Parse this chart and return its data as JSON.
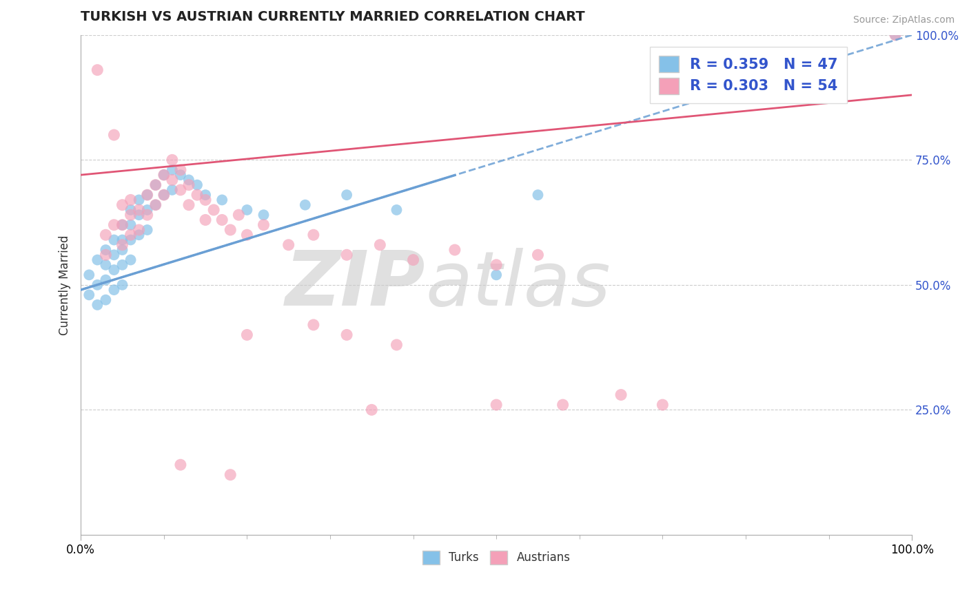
{
  "title": "TURKISH VS AUSTRIAN CURRENTLY MARRIED CORRELATION CHART",
  "source": "Source: ZipAtlas.com",
  "ylabel": "Currently Married",
  "xmin": 0.0,
  "xmax": 1.0,
  "ymin": 0.0,
  "ymax": 1.0,
  "yticks": [
    0.25,
    0.5,
    0.75,
    1.0
  ],
  "ytick_labels": [
    "25.0%",
    "50.0%",
    "75.0%",
    "100.0%"
  ],
  "turks_R": 0.359,
  "turks_N": 47,
  "austrians_R": 0.303,
  "austrians_N": 54,
  "turks_color": "#85C1E8",
  "austrians_color": "#F4A0B8",
  "trend_turks_color": "#6A9FD4",
  "trend_austrians_color": "#E05575",
  "watermark_color": "#E0E0E0",
  "legend_R_color": "#3355CC",
  "turks_x": [
    0.01,
    0.01,
    0.02,
    0.02,
    0.02,
    0.03,
    0.03,
    0.03,
    0.03,
    0.04,
    0.04,
    0.04,
    0.04,
    0.05,
    0.05,
    0.05,
    0.05,
    0.05,
    0.06,
    0.06,
    0.06,
    0.06,
    0.07,
    0.07,
    0.07,
    0.08,
    0.08,
    0.08,
    0.09,
    0.09,
    0.1,
    0.1,
    0.11,
    0.11,
    0.12,
    0.13,
    0.14,
    0.15,
    0.17,
    0.2,
    0.22,
    0.27,
    0.32,
    0.38,
    0.5,
    0.55,
    0.98
  ],
  "turks_y": [
    0.52,
    0.48,
    0.55,
    0.5,
    0.46,
    0.57,
    0.54,
    0.51,
    0.47,
    0.59,
    0.56,
    0.53,
    0.49,
    0.62,
    0.59,
    0.57,
    0.54,
    0.5,
    0.65,
    0.62,
    0.59,
    0.55,
    0.67,
    0.64,
    0.6,
    0.68,
    0.65,
    0.61,
    0.7,
    0.66,
    0.72,
    0.68,
    0.73,
    0.69,
    0.72,
    0.71,
    0.7,
    0.68,
    0.67,
    0.65,
    0.64,
    0.66,
    0.68,
    0.65,
    0.52,
    0.68,
    1.0
  ],
  "austrians_x": [
    0.02,
    0.03,
    0.03,
    0.04,
    0.04,
    0.05,
    0.05,
    0.05,
    0.06,
    0.06,
    0.06,
    0.07,
    0.07,
    0.08,
    0.08,
    0.09,
    0.09,
    0.1,
    0.1,
    0.11,
    0.11,
    0.12,
    0.12,
    0.13,
    0.13,
    0.14,
    0.15,
    0.15,
    0.16,
    0.17,
    0.18,
    0.19,
    0.2,
    0.22,
    0.25,
    0.28,
    0.32,
    0.36,
    0.4,
    0.45,
    0.5,
    0.55,
    0.2,
    0.28,
    0.32,
    0.38,
    0.5,
    0.58,
    0.65,
    0.7,
    0.12,
    0.18,
    0.35,
    0.98
  ],
  "austrians_y": [
    0.93,
    0.6,
    0.56,
    0.8,
    0.62,
    0.66,
    0.58,
    0.62,
    0.64,
    0.6,
    0.67,
    0.65,
    0.61,
    0.68,
    0.64,
    0.7,
    0.66,
    0.72,
    0.68,
    0.75,
    0.71,
    0.73,
    0.69,
    0.7,
    0.66,
    0.68,
    0.67,
    0.63,
    0.65,
    0.63,
    0.61,
    0.64,
    0.6,
    0.62,
    0.58,
    0.6,
    0.56,
    0.58,
    0.55,
    0.57,
    0.54,
    0.56,
    0.4,
    0.42,
    0.4,
    0.38,
    0.26,
    0.26,
    0.28,
    0.26,
    0.14,
    0.12,
    0.25,
    1.0
  ],
  "turks_line_x0": 0.0,
  "turks_line_y0": 0.49,
  "turks_line_x1": 1.0,
  "turks_line_y1": 1.0,
  "austrians_line_x0": 0.0,
  "austrians_line_y0": 0.72,
  "austrians_line_x1": 1.0,
  "austrians_line_y1": 0.88
}
